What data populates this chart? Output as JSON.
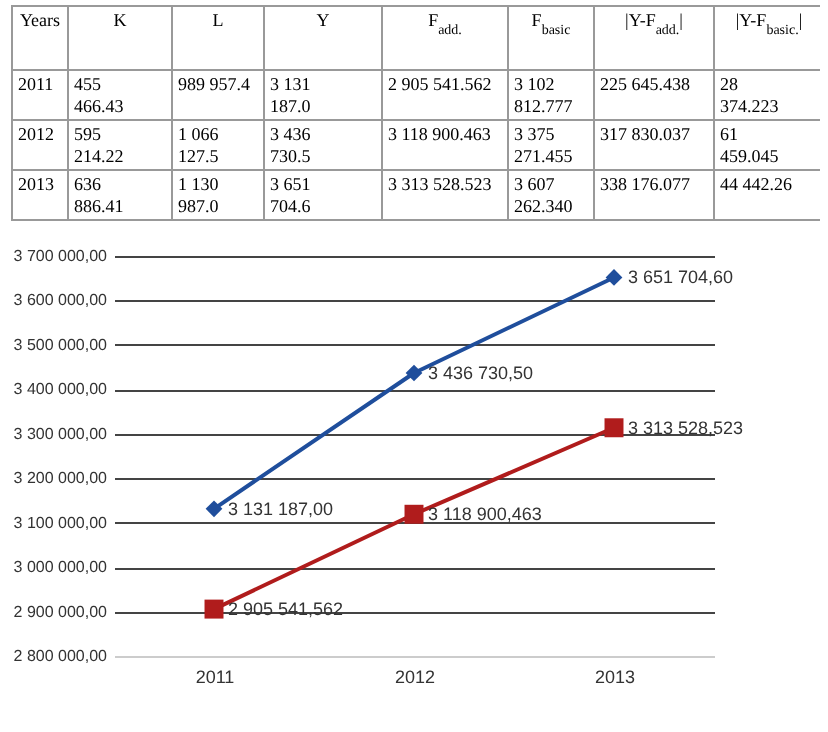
{
  "chart_data": [
    {
      "type": "other",
      "annotations": [
        "Years",
        "K",
        "L",
        "Y",
        "F$_{add.}$",
        "F$_{basic}$",
        "|Y-F$_{add.}$|",
        "|Y-F$_{basic.}$|",
        "2011",
        "455 466.43",
        "989 957.4",
        "3 131 187.0",
        "2 905 541.562",
        "3 102 812.777",
        "225 645.438",
        "28 374.223",
        "2012",
        "595 214.22",
        "1 066 127.5",
        "3 436 730.5",
        "3 118 900.463",
        "3 375 271.455",
        "317 830.037",
        "61 459.045",
        "2013",
        "636 886.41",
        "1 130 987.0",
        "3 651 704.6",
        "3 313 528.523",
        "3 607 262.340",
        "338 176.077",
        "44 442.26"
      ]
    },
    {
      "type": "line",
      "categories": [
        "2011",
        "2012",
        "2013"
      ],
      "ylim": [
        2800000,
        3700000
      ],
      "yticks": [
        {
          "value": 2800000,
          "label": "2 800 000,00"
        },
        {
          "value": 2900000,
          "label": "2 900 000,00"
        },
        {
          "value": 3000000,
          "label": "3 000 000,00"
        },
        {
          "value": 3100000,
          "label": "3 100 000,00"
        },
        {
          "value": 3200000,
          "label": "3 200 000,00"
        },
        {
          "value": 3300000,
          "label": "3 300 000,00"
        },
        {
          "value": 3400000,
          "label": "3 400 000,00"
        },
        {
          "value": 3500000,
          "label": "3 500 000,00"
        },
        {
          "value": 3600000,
          "label": "3 600 000,00"
        },
        {
          "value": 3700000,
          "label": "3 700 000,00"
        }
      ],
      "grid": "y",
      "series": [
        {
          "color": "#1f4e9c",
          "marker": "diamond",
          "values": [
            3131187.0,
            3436730.5,
            3651704.6
          ],
          "value_labels": [
            "3 131 187,00",
            "3 436 730,50",
            "3 651 704,60"
          ]
        },
        {
          "color": "#b01c1c",
          "marker": "square",
          "values": [
            2905541.562,
            3118900.463,
            3313528.523
          ],
          "value_labels": [
            "2 905 541,562",
            "3 118 900,463",
            "3 313 528,523"
          ]
        }
      ]
    }
  ]
}
